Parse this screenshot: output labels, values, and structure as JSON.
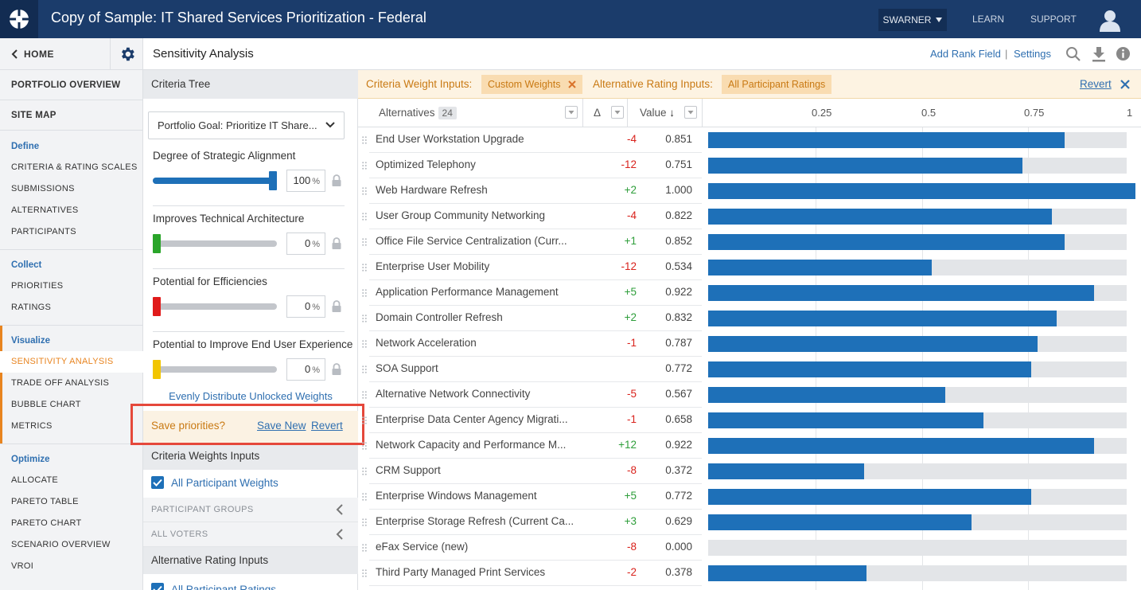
{
  "app": {
    "title": "Copy of Sample: IT Shared Services Prioritization - Federal",
    "user": "SWARNER",
    "links": [
      "LEARN",
      "SUPPORT"
    ]
  },
  "nav": {
    "home": "HOME",
    "portfolio_overview": "PORTFOLIO OVERVIEW",
    "site_map": "SITE MAP",
    "sections": [
      {
        "label": "Define",
        "items": [
          "CRITERIA & RATING SCALES",
          "SUBMISSIONS",
          "ALTERNATIVES",
          "PARTICIPANTS"
        ]
      },
      {
        "label": "Collect",
        "items": [
          "PRIORITIES",
          "RATINGS"
        ]
      },
      {
        "label": "Visualize",
        "items": [
          "SENSITIVITY ANALYSIS",
          "TRADE OFF ANALYSIS",
          "BUBBLE CHART",
          "METRICS"
        ]
      },
      {
        "label": "Optimize",
        "items": [
          "ALLOCATE",
          "PARETO TABLE",
          "PARETO CHART",
          "SCENARIO OVERVIEW",
          "VROI"
        ]
      }
    ],
    "active_item": "SENSITIVITY ANALYSIS"
  },
  "header": {
    "page_title": "Sensitivity Analysis",
    "add_rank_field": "Add Rank Field",
    "separator": "|",
    "settings": "Settings"
  },
  "criteria_panel": {
    "title": "Criteria Tree",
    "goal": "Portfolio Goal: Prioritize IT Share...",
    "criteria": [
      {
        "label": "Degree of Strategic Alignment",
        "weight": 100,
        "color": "#1e70b8"
      },
      {
        "label": "Improves Technical Architecture",
        "weight": 0,
        "color": "#2aa52a"
      },
      {
        "label": "Potential for Efficiencies",
        "weight": 0,
        "color": "#e01b1b"
      },
      {
        "label": "Potential to Improve End User Experience",
        "weight": 0,
        "color": "#f2c500"
      }
    ],
    "pct_sign": "%",
    "even_link": "Evenly Distribute Unlocked Weights",
    "save_question": "Save priorities?",
    "save_new": "Save New",
    "revert": "Revert",
    "weights_inputs_title": "Criteria Weights Inputs",
    "all_participant_weights": "All Participant Weights",
    "participant_groups": "PARTICIPANT GROUPS",
    "all_voters": "ALL VOTERS",
    "rating_inputs_title": "Alternative Rating Inputs",
    "all_participant_ratings": "All Participant Ratings"
  },
  "inputs_bar": {
    "weight_label": "Criteria Weight Inputs:",
    "weight_chip": "Custom Weights",
    "rating_label": "Alternative Rating Inputs:",
    "rating_chip": "All Participant Ratings",
    "revert": "Revert"
  },
  "table": {
    "col_alternatives": "Alternatives",
    "count": "24",
    "col_delta": "Δ",
    "col_value": "Value",
    "sort_arrow": "↓",
    "ticks": [
      "0.25",
      "0.5",
      "0.75",
      "1"
    ],
    "rows": [
      {
        "name": "End User Workstation Upgrade",
        "delta": "-4",
        "value": 0.851,
        "value_text": "0.851"
      },
      {
        "name": "Optimized Telephony",
        "delta": "-12",
        "value": 0.751,
        "value_text": "0.751"
      },
      {
        "name": "Web Hardware Refresh",
        "delta": "+2",
        "value": 1.0,
        "value_text": "1.000"
      },
      {
        "name": "User Group Community Networking",
        "delta": "-4",
        "value": 0.822,
        "value_text": "0.822"
      },
      {
        "name": "Office File Service Centralization (Curr...",
        "delta": "+1",
        "value": 0.852,
        "value_text": "0.852"
      },
      {
        "name": "Enterprise User Mobility",
        "delta": "-12",
        "value": 0.534,
        "value_text": "0.534"
      },
      {
        "name": "Application Performance Management",
        "delta": "+5",
        "value": 0.922,
        "value_text": "0.922"
      },
      {
        "name": "Domain Controller Refresh",
        "delta": "+2",
        "value": 0.832,
        "value_text": "0.832"
      },
      {
        "name": "Network Acceleration",
        "delta": "-1",
        "value": 0.787,
        "value_text": "0.787"
      },
      {
        "name": "SOA Support",
        "delta": "",
        "value": 0.772,
        "value_text": "0.772"
      },
      {
        "name": "Alternative Network Connectivity",
        "delta": "-5",
        "value": 0.567,
        "value_text": "0.567"
      },
      {
        "name": "Enterprise Data Center Agency Migrati...",
        "delta": "-1",
        "value": 0.658,
        "value_text": "0.658"
      },
      {
        "name": "Network Capacity and Performance M...",
        "delta": "+12",
        "value": 0.922,
        "value_text": "0.922"
      },
      {
        "name": "CRM Support",
        "delta": "-8",
        "value": 0.372,
        "value_text": "0.372"
      },
      {
        "name": "Enterprise Windows Management",
        "delta": "+5",
        "value": 0.772,
        "value_text": "0.772"
      },
      {
        "name": "Enterprise Storage Refresh (Current Ca...",
        "delta": "+3",
        "value": 0.629,
        "value_text": "0.629"
      },
      {
        "name": "eFax Service (new)",
        "delta": "-8",
        "value": 0.0,
        "value_text": "0.000"
      },
      {
        "name": "Third Party Managed Print Services",
        "delta": "-2",
        "value": 0.378,
        "value_text": "0.378"
      }
    ]
  },
  "colors": {
    "topbar": "#1b3c6b",
    "accent": "#e8841f",
    "link": "#2f6fb0",
    "bar": "#1e70b8",
    "positive": "#2e9e3a",
    "negative": "#d9221c"
  }
}
